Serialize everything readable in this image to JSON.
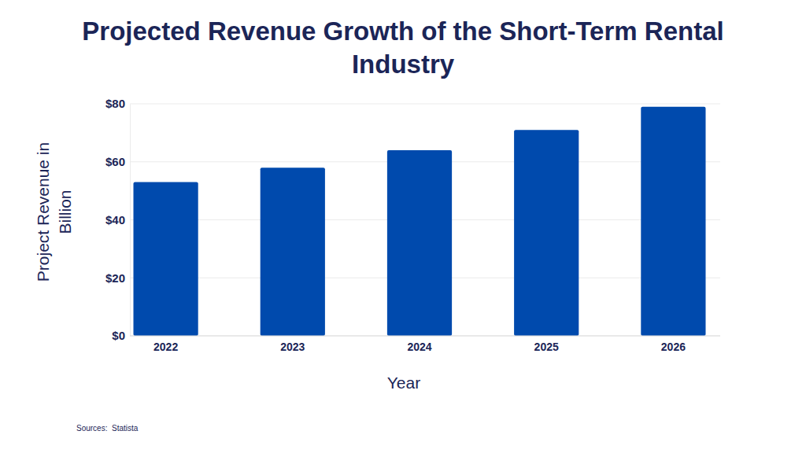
{
  "chart_data": {
    "type": "bar",
    "title": "Projected Revenue Growth of the Short-Term Rental Industry",
    "x_label": "Year",
    "y_label": "Project Revenue in Billion",
    "source": "Sources:  Statista",
    "categories": [
      "2022",
      "2023",
      "2024",
      "2025",
      "2026"
    ],
    "values": [
      53,
      58,
      64,
      71,
      79
    ],
    "color": "#004aad",
    "ylim": [
      0,
      80
    ],
    "yticks": [
      {
        "value": 0,
        "label": "$0"
      },
      {
        "value": 20,
        "label": "$20"
      },
      {
        "value": 40,
        "label": "$40"
      },
      {
        "value": 60,
        "label": "$60"
      },
      {
        "value": 80,
        "label": "$80"
      }
    ],
    "grid": true
  }
}
